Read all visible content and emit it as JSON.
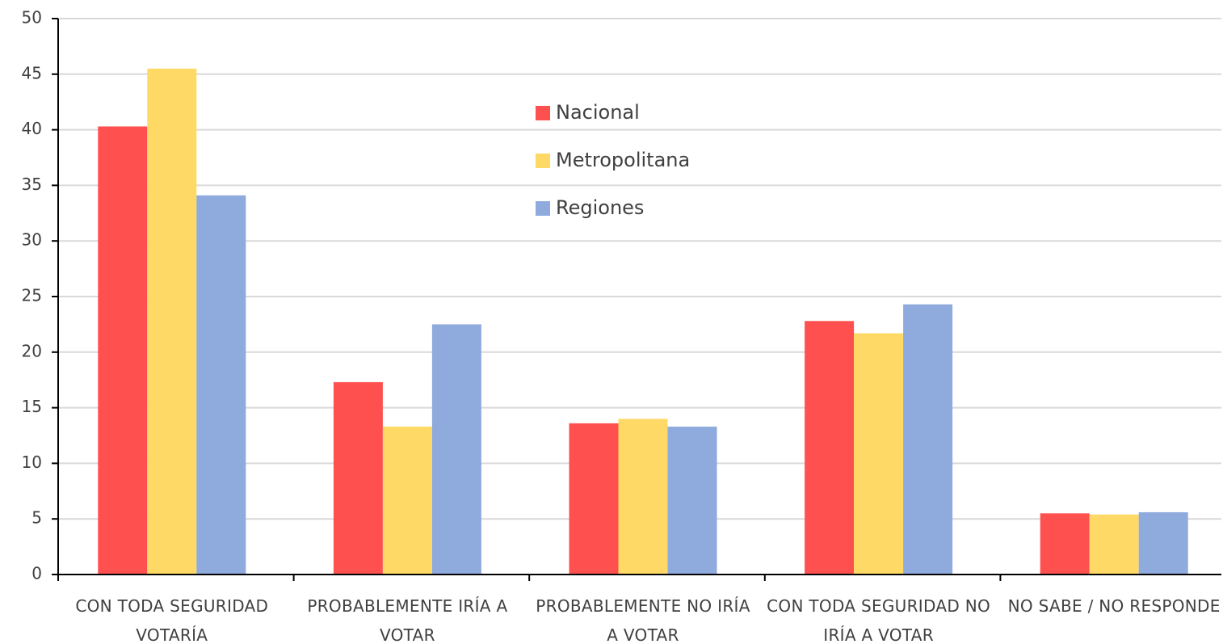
{
  "chart_data": {
    "type": "bar",
    "categories": [
      "CON TODA SEGURIDAD VOTARÍA",
      "PROBABLEMENTE IRÍA A VOTAR",
      "PROBABLEMENTE NO IRÍA A VOTAR",
      "CON TODA SEGURIDAD NO IRÍA A VOTAR",
      "NO SABE / NO RESPONDE"
    ],
    "series": [
      {
        "name": "Nacional",
        "color": "#ff5050",
        "values": [
          40.3,
          17.3,
          13.6,
          22.8,
          5.5
        ]
      },
      {
        "name": "Metropolitana",
        "color": "#ffd966",
        "values": [
          45.5,
          13.3,
          14.0,
          21.7,
          5.4
        ]
      },
      {
        "name": "Regiones",
        "color": "#8faadc",
        "values": [
          34.1,
          22.5,
          13.3,
          24.3,
          5.6
        ]
      }
    ],
    "ylim": [
      0,
      50
    ],
    "yticks": [
      0,
      5,
      10,
      15,
      20,
      25,
      30,
      35,
      40,
      45,
      50
    ],
    "grid": true
  }
}
